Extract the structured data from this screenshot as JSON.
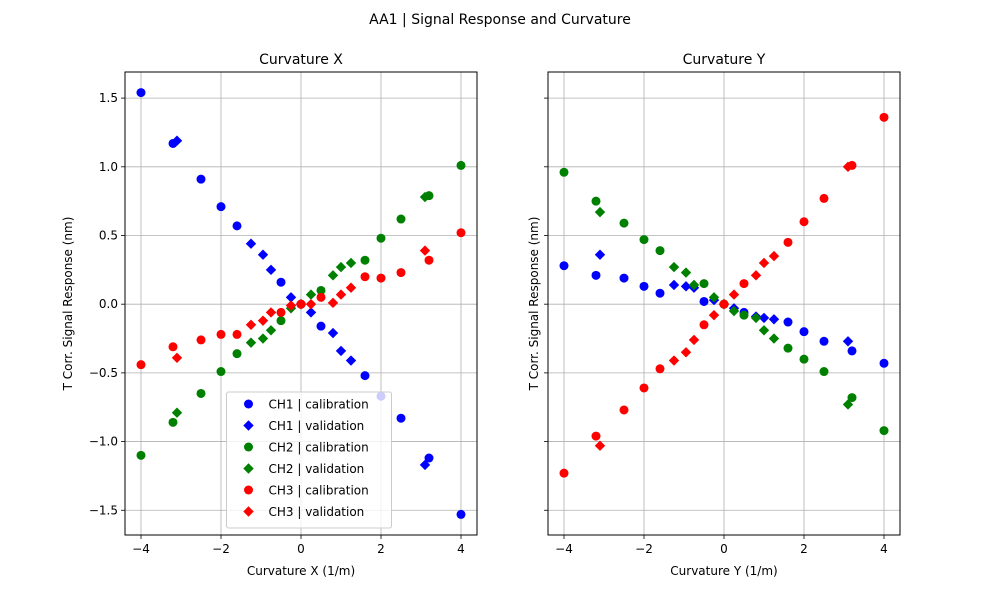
{
  "figure": {
    "suptitle": "AA1 | Signal Response and Curvature"
  },
  "colors": {
    "CH1": "#0000ff",
    "CH2": "#008000",
    "CH3": "#ff0000"
  },
  "chart_data": [
    {
      "type": "scatter",
      "title": "Curvature X",
      "xlabel": "Curvature X (1/m)",
      "ylabel": "T Corr. Signal Response (nm)",
      "xlim": [
        -4.4,
        4.4
      ],
      "ylim": [
        -1.68,
        1.69
      ],
      "xticks": [
        -4,
        -2,
        0,
        2,
        4
      ],
      "yticks": [
        -1.5,
        -1.0,
        -0.5,
        0.0,
        0.5,
        1.0,
        1.5
      ],
      "xtick_labels": [
        "−4",
        "−2",
        "0",
        "2",
        "4"
      ],
      "ytick_labels": [
        "−1.5",
        "−1.0",
        "−0.5",
        "0.0",
        "0.5",
        "1.0",
        "1.5"
      ],
      "grid": true,
      "legend_position": "lower-center",
      "series": [
        {
          "name": "CH1 | calibration",
          "channel": "CH1",
          "marker": "circle",
          "points": [
            [
              -4,
              1.54
            ],
            [
              -3.2,
              1.17
            ],
            [
              -2.5,
              0.91
            ],
            [
              -2,
              0.71
            ],
            [
              -1.6,
              0.57
            ],
            [
              -0.5,
              0.16
            ],
            [
              0,
              0.0
            ],
            [
              0.5,
              -0.16
            ],
            [
              1.6,
              -0.52
            ],
            [
              2,
              -0.67
            ],
            [
              2.5,
              -0.83
            ],
            [
              3.2,
              -1.12
            ],
            [
              4,
              -1.53
            ]
          ]
        },
        {
          "name": "CH1 | validation",
          "channel": "CH1",
          "marker": "diamond",
          "points": [
            [
              -3.1,
              1.19
            ],
            [
              -1.25,
              0.44
            ],
            [
              -0.95,
              0.36
            ],
            [
              -0.75,
              0.25
            ],
            [
              -0.25,
              0.05
            ],
            [
              0,
              0.0
            ],
            [
              0.25,
              -0.06
            ],
            [
              0.8,
              -0.21
            ],
            [
              1.0,
              -0.34
            ],
            [
              1.25,
              -0.41
            ],
            [
              3.1,
              -1.17
            ]
          ]
        },
        {
          "name": "CH2 | calibration",
          "channel": "CH2",
          "marker": "circle",
          "points": [
            [
              -4,
              -1.1
            ],
            [
              -3.2,
              -0.86
            ],
            [
              -2.5,
              -0.65
            ],
            [
              -2,
              -0.49
            ],
            [
              -1.6,
              -0.36
            ],
            [
              -0.5,
              -0.12
            ],
            [
              0,
              0.0
            ],
            [
              0.5,
              0.1
            ],
            [
              1.6,
              0.32
            ],
            [
              2,
              0.48
            ],
            [
              2.5,
              0.62
            ],
            [
              3.2,
              0.79
            ],
            [
              4,
              1.01
            ]
          ]
        },
        {
          "name": "CH2 | validation",
          "channel": "CH2",
          "marker": "diamond",
          "points": [
            [
              -3.1,
              -0.79
            ],
            [
              -1.25,
              -0.28
            ],
            [
              -0.95,
              -0.25
            ],
            [
              -0.75,
              -0.19
            ],
            [
              -0.25,
              -0.03
            ],
            [
              0,
              0.0
            ],
            [
              0.25,
              0.07
            ],
            [
              0.8,
              0.21
            ],
            [
              1.0,
              0.27
            ],
            [
              1.25,
              0.3
            ],
            [
              3.1,
              0.78
            ]
          ]
        },
        {
          "name": "CH3 | calibration",
          "channel": "CH3",
          "marker": "circle",
          "points": [
            [
              -4,
              -0.44
            ],
            [
              -3.2,
              -0.31
            ],
            [
              -2.5,
              -0.26
            ],
            [
              -2,
              -0.22
            ],
            [
              -1.6,
              -0.22
            ],
            [
              -0.5,
              -0.06
            ],
            [
              0,
              0.0
            ],
            [
              0.5,
              0.05
            ],
            [
              1.6,
              0.2
            ],
            [
              2,
              0.19
            ],
            [
              2.5,
              0.23
            ],
            [
              3.2,
              0.32
            ],
            [
              4,
              0.52
            ]
          ]
        },
        {
          "name": "CH3 | validation",
          "channel": "CH3",
          "marker": "diamond",
          "points": [
            [
              -3.1,
              -0.39
            ],
            [
              -1.25,
              -0.15
            ],
            [
              -0.95,
              -0.12
            ],
            [
              -0.75,
              -0.06
            ],
            [
              -0.25,
              -0.01
            ],
            [
              0,
              0.0
            ],
            [
              0.25,
              0.0
            ],
            [
              0.8,
              0.01
            ],
            [
              1.0,
              0.07
            ],
            [
              1.25,
              0.12
            ],
            [
              3.1,
              0.39
            ]
          ]
        }
      ]
    },
    {
      "type": "scatter",
      "title": "Curvature Y",
      "xlabel": "Curvature Y (1/m)",
      "ylabel": "T Corr. Signal Response (nm)",
      "xlim": [
        -4.4,
        4.4
      ],
      "ylim": [
        -1.68,
        1.69
      ],
      "xticks": [
        -4,
        -2,
        0,
        2,
        4
      ],
      "yticks": [
        -1.5,
        -1.0,
        -0.5,
        0.0,
        0.5,
        1.0,
        1.5
      ],
      "xtick_labels": [
        "−4",
        "−2",
        "0",
        "2",
        "4"
      ],
      "ytick_labels": [],
      "grid": true,
      "series": [
        {
          "name": "CH1 | calibration",
          "channel": "CH1",
          "marker": "circle",
          "points": [
            [
              -4,
              0.28
            ],
            [
              -3.2,
              0.21
            ],
            [
              -2.5,
              0.19
            ],
            [
              -2,
              0.13
            ],
            [
              -1.6,
              0.08
            ],
            [
              -0.5,
              0.02
            ],
            [
              0,
              0.0
            ],
            [
              0.5,
              -0.06
            ],
            [
              1.6,
              -0.13
            ],
            [
              2,
              -0.2
            ],
            [
              2.5,
              -0.27
            ],
            [
              3.2,
              -0.34
            ],
            [
              4,
              -0.43
            ]
          ]
        },
        {
          "name": "CH1 | validation",
          "channel": "CH1",
          "marker": "diamond",
          "points": [
            [
              -3.1,
              0.36
            ],
            [
              -1.25,
              0.14
            ],
            [
              -0.95,
              0.13
            ],
            [
              -0.75,
              0.12
            ],
            [
              -0.25,
              0.03
            ],
            [
              0,
              0.0
            ],
            [
              0.25,
              -0.03
            ],
            [
              0.8,
              -0.09
            ],
            [
              1.0,
              -0.1
            ],
            [
              1.25,
              -0.11
            ],
            [
              3.1,
              -0.27
            ]
          ]
        },
        {
          "name": "CH2 | calibration",
          "channel": "CH2",
          "marker": "circle",
          "points": [
            [
              -4,
              0.96
            ],
            [
              -3.2,
              0.75
            ],
            [
              -2.5,
              0.59
            ],
            [
              -2,
              0.47
            ],
            [
              -1.6,
              0.39
            ],
            [
              -0.5,
              0.15
            ],
            [
              0,
              0.0
            ],
            [
              0.5,
              -0.08
            ],
            [
              1.6,
              -0.32
            ],
            [
              2,
              -0.4
            ],
            [
              2.5,
              -0.49
            ],
            [
              3.2,
              -0.68
            ],
            [
              4,
              -0.92
            ]
          ]
        },
        {
          "name": "CH2 | validation",
          "channel": "CH2",
          "marker": "diamond",
          "points": [
            [
              -3.1,
              0.67
            ],
            [
              -1.25,
              0.27
            ],
            [
              -0.95,
              0.23
            ],
            [
              -0.75,
              0.14
            ],
            [
              -0.25,
              0.05
            ],
            [
              0,
              0.0
            ],
            [
              0.25,
              -0.05
            ],
            [
              0.8,
              -0.1
            ],
            [
              1.0,
              -0.19
            ],
            [
              1.25,
              -0.25
            ],
            [
              3.1,
              -0.73
            ]
          ]
        },
        {
          "name": "CH3 | calibration",
          "channel": "CH3",
          "marker": "circle",
          "points": [
            [
              -4,
              -1.23
            ],
            [
              -3.2,
              -0.96
            ],
            [
              -2.5,
              -0.77
            ],
            [
              -2,
              -0.61
            ],
            [
              -1.6,
              -0.47
            ],
            [
              -0.5,
              -0.15
            ],
            [
              0,
              0.0
            ],
            [
              0.5,
              0.15
            ],
            [
              1.6,
              0.45
            ],
            [
              2,
              0.6
            ],
            [
              2.5,
              0.77
            ],
            [
              3.2,
              1.01
            ],
            [
              4,
              1.36
            ]
          ]
        },
        {
          "name": "CH3 | validation",
          "channel": "CH3",
          "marker": "diamond",
          "points": [
            [
              -3.1,
              -1.03
            ],
            [
              -1.25,
              -0.41
            ],
            [
              -0.95,
              -0.35
            ],
            [
              -0.75,
              -0.26
            ],
            [
              -0.25,
              -0.08
            ],
            [
              0,
              0.0
            ],
            [
              0.25,
              0.07
            ],
            [
              0.8,
              0.21
            ],
            [
              1.0,
              0.3
            ],
            [
              1.25,
              0.35
            ],
            [
              3.1,
              1.0
            ]
          ]
        }
      ]
    }
  ]
}
